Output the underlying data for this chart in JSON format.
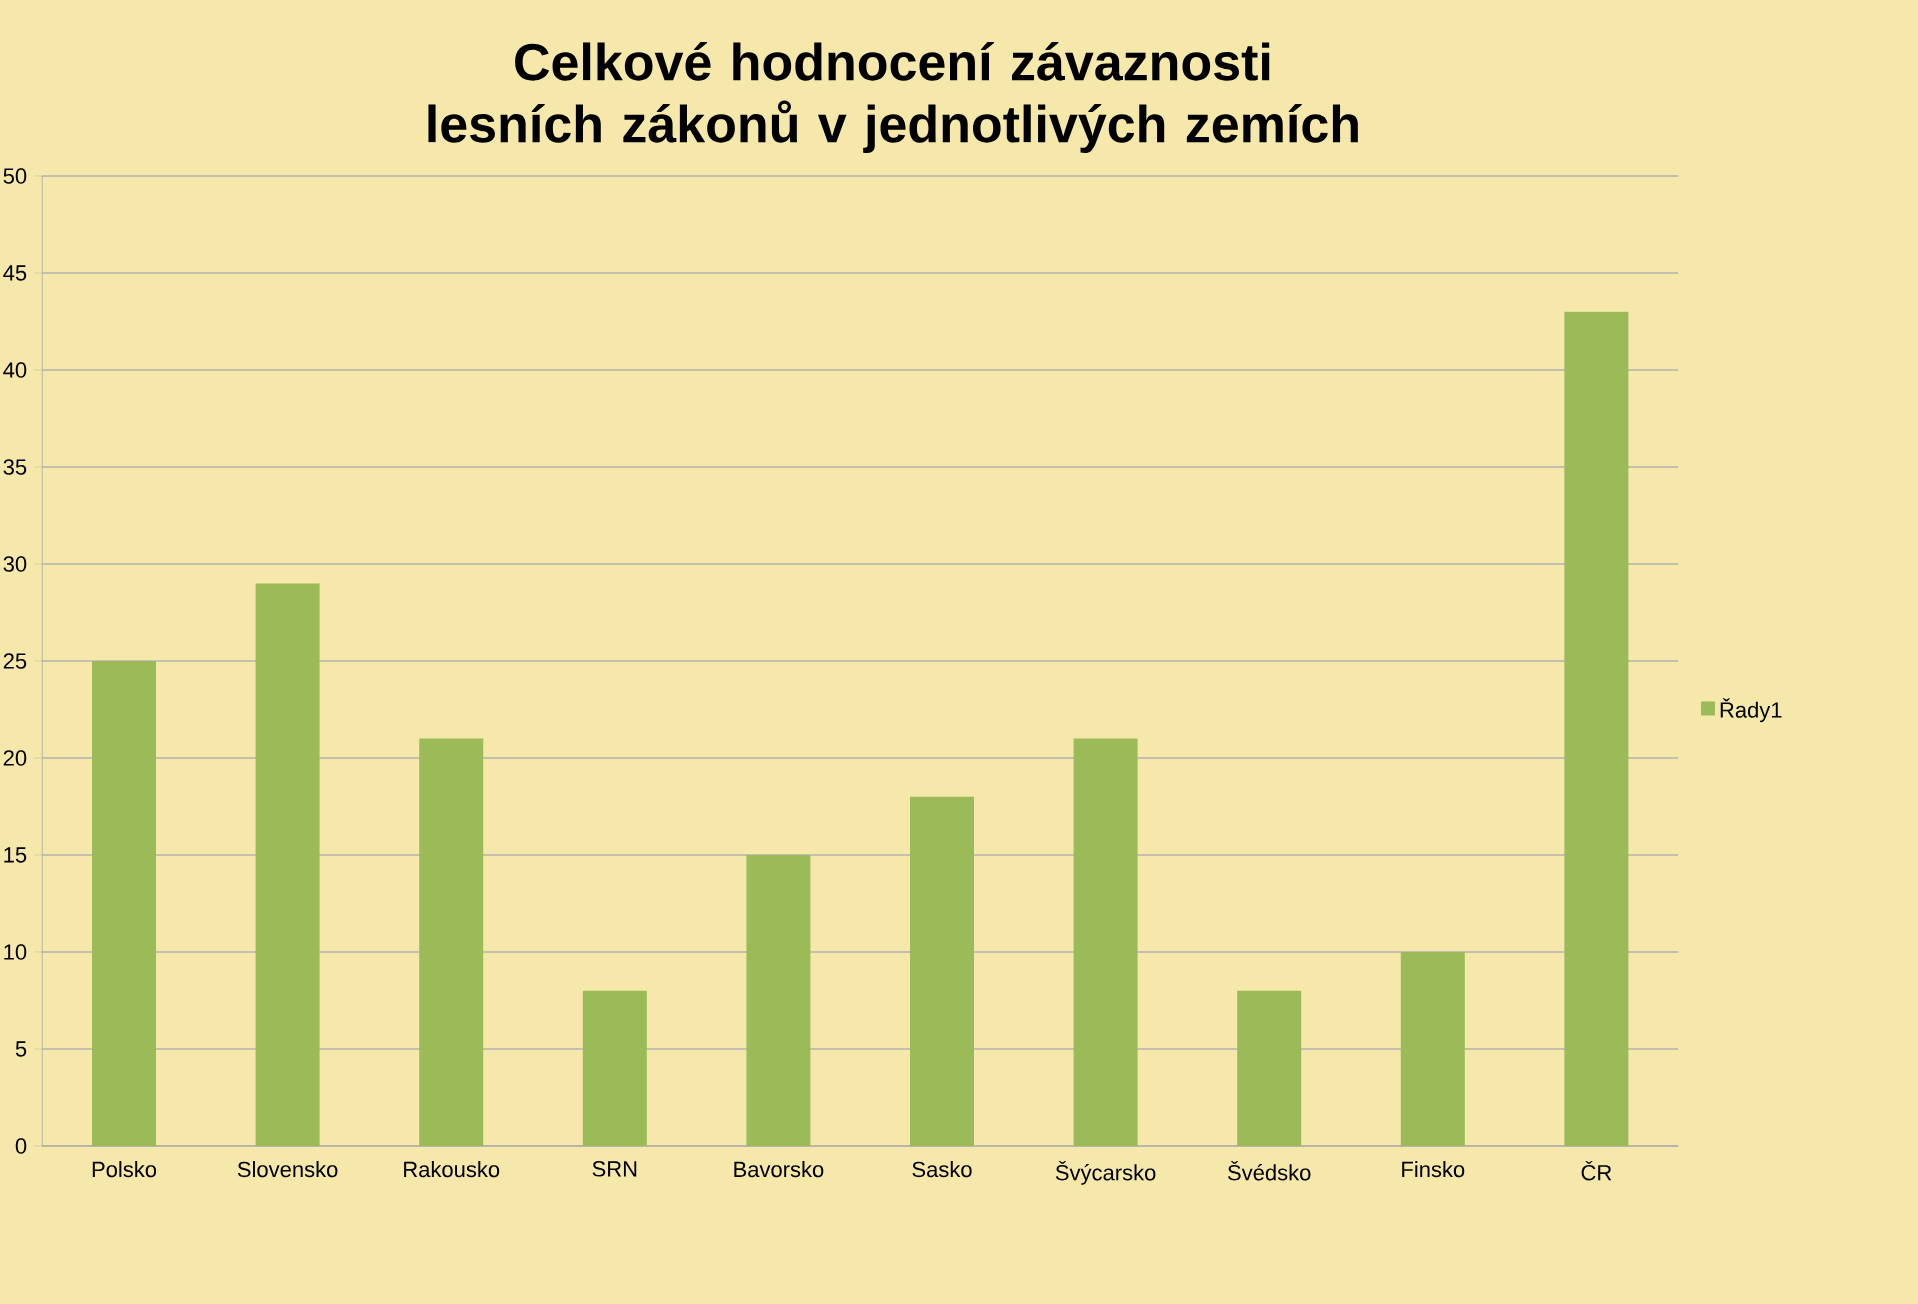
{
  "chart_data": {
    "type": "bar",
    "title": "Celkové hodnocení závaznosti lesních zákonů v jednotlivých zemích",
    "categories": [
      "Polsko",
      "Slovensko",
      "Rakousko",
      "SRN",
      "Bavorsko",
      "Sasko",
      "Švýcarsko",
      "Švédsko",
      "Finsko",
      "ČR"
    ],
    "series": [
      {
        "name": "Řady1",
        "color": "#9bbb59",
        "values": [
          25,
          29,
          21,
          8,
          15,
          18,
          21,
          8,
          10,
          43
        ]
      }
    ],
    "ylim": [
      0,
      50
    ],
    "yticks": [
      0,
      5,
      10,
      15,
      20,
      25,
      30,
      35,
      40,
      45,
      50
    ],
    "grid": "y",
    "legend": "right"
  }
}
